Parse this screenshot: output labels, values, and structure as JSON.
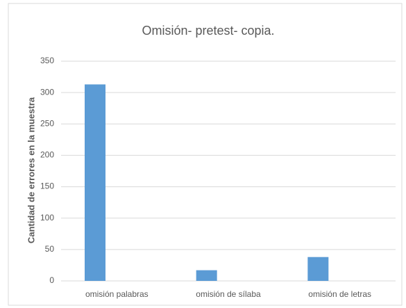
{
  "chart_data": {
    "type": "bar",
    "title": "Omisión- pretest- copia.",
    "y_label": "Cantidad de errores en la muestra",
    "categories": [
      "omisión palabras",
      "omisión de sílaba",
      "omisión de letras"
    ],
    "values": [
      313,
      17,
      38
    ],
    "color": "#5b9bd5",
    "ylim": [
      0,
      350
    ],
    "yticks": [
      0,
      50,
      100,
      150,
      200,
      250,
      300,
      350
    ],
    "grid": true
  }
}
